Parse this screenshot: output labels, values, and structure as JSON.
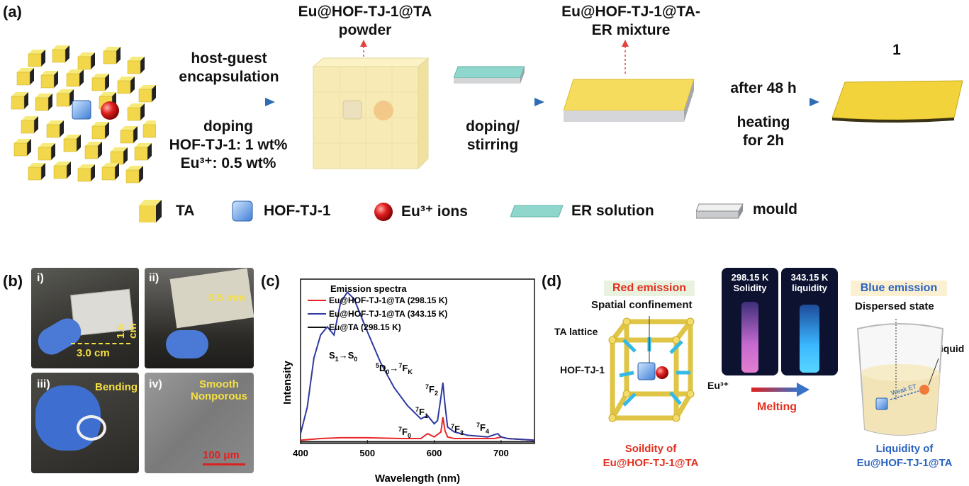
{
  "panel_a": {
    "label": "(a)",
    "step1": {
      "line1": "host-guest",
      "line2": "encapsulation",
      "line3": "doping",
      "line4": "HOF-TJ-1: 1 wt%",
      "line5": "Eu³⁺: 0.5 wt%"
    },
    "powder_title_1": "Eu@HOF-TJ-1@TA",
    "powder_title_2": "powder",
    "step2": {
      "line1": "doping/",
      "line2": "stirring"
    },
    "mixture_title_1": "Eu@HOF-TJ-1@TA-",
    "mixture_title_2": "ER mixture",
    "step3": {
      "line1": "after 48 h",
      "line2": "heating",
      "line3": "for 2h"
    },
    "product_label": "1",
    "legend": {
      "ta": "TA",
      "hof": "HOF-TJ-1",
      "eu": "Eu³⁺ ions",
      "er": "ER solution",
      "mould": "mould"
    }
  },
  "panel_b": {
    "label": "(b)",
    "i": {
      "label": "i)",
      "width": "3.0 cm",
      "height": "1.5 cm"
    },
    "ii": {
      "label": "ii)",
      "thickness": "0.5 mm"
    },
    "iii": {
      "label": "iii)",
      "caption": "Bending"
    },
    "iv": {
      "label": "iv)",
      "caption1": "Smooth",
      "caption2": "Nonporous",
      "scale": "100 μm"
    }
  },
  "panel_c": {
    "label": "(c)",
    "xlabel": "Wavelength (nm)",
    "ylabel": "Intensity",
    "legend_title": "Emission spectra"
  },
  "chart_data": {
    "type": "line",
    "title": "Emission spectra",
    "xlabel": "Wavelength (nm)",
    "ylabel": "Intensity",
    "xlim": [
      400,
      750
    ],
    "xticks": [
      "400",
      "500",
      "600",
      "700"
    ],
    "yticks": "none",
    "legend_placement": "top",
    "series": [
      {
        "name": "Eu@HOF-TJ-1@TA (298.15 K)",
        "color": "#e8272a",
        "x": [
          400,
          430,
          460,
          500,
          550,
          580,
          590,
          600,
          610,
          613,
          616,
          620,
          630,
          650,
          690,
          700,
          710,
          750
        ],
        "values": [
          0.02,
          0.03,
          0.035,
          0.035,
          0.03,
          0.03,
          0.06,
          0.04,
          0.07,
          0.16,
          0.08,
          0.04,
          0.03,
          0.03,
          0.03,
          0.04,
          0.03,
          0.02
        ]
      },
      {
        "name": "Eu@HOF-TJ-1@TA (343.15 K)",
        "color": "#2e3a9e",
        "x": [
          400,
          410,
          420,
          430,
          440,
          450,
          460,
          470,
          480,
          490,
          500,
          520,
          540,
          560,
          580,
          590,
          600,
          605,
          610,
          613,
          616,
          620,
          630,
          650,
          680,
          695,
          700,
          710,
          750
        ],
        "values": [
          0.06,
          0.22,
          0.52,
          0.66,
          0.71,
          0.66,
          0.86,
          0.92,
          0.88,
          0.78,
          0.68,
          0.49,
          0.34,
          0.23,
          0.15,
          0.17,
          0.12,
          0.14,
          0.28,
          0.37,
          0.24,
          0.1,
          0.07,
          0.05,
          0.04,
          0.06,
          0.04,
          0.03,
          0.02
        ]
      },
      {
        "name": "Eu@TA (298.15 K)",
        "color": "#111111",
        "x": [
          400,
          750
        ],
        "values": [
          0.01,
          0.01
        ]
      }
    ],
    "annotations": {
      "s1s0": "S",
      "s1s0_sub1": "1",
      "s1s0_arrow": "→S",
      "s1s0_sub2": "0",
      "d0fk": "D",
      "f0": "F",
      "f1": "F",
      "f2": "F",
      "f3": "F",
      "f4": "F"
    }
  },
  "panel_d": {
    "label": "(d)",
    "red_emission": "Red emission",
    "spatial": "Spatial confinement",
    "ta_lattice": "TA lattice",
    "hof": "HOF-TJ-1",
    "eu": "Eu³⁺",
    "et": "ET",
    "solid_caption_1": "Soildity of",
    "solid_caption_2": "Eu@HOF-TJ-1@TA",
    "photo1_line1": "298.15 K",
    "photo1_line2": "Solidity",
    "photo2_line1": "343.15 K",
    "photo2_line2": "liquidity",
    "melting": "Melting",
    "blue_emission": "Blue emission",
    "dispersed": "Dispersed state",
    "ta_liquid": "TA liquid",
    "weak_et": "Weak ET",
    "liquid_caption_1": "Liquidity of",
    "liquid_caption_2": "Eu@HOF-TJ-1@TA"
  }
}
